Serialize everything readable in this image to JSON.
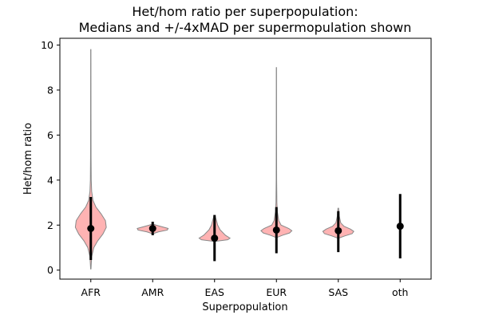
{
  "chart_data": {
    "type": "violin",
    "title_line1": "Het/hom ratio per superpopulation:",
    "title_line2": "Medians and +/-4xMAD per supermopulation shown",
    "xlabel": "Superpopulation",
    "ylabel": "Het/hom ratio",
    "categories": [
      "AFR",
      "AMR",
      "EAS",
      "EUR",
      "SAS",
      "oth"
    ],
    "yticks": [
      0,
      2,
      4,
      6,
      8,
      10
    ],
    "ylim": [
      -0.4,
      10.3
    ],
    "grid": false,
    "violin_color": "#ff9999",
    "violin_edge_color": "#888888",
    "marker_color": "#000000",
    "medians": [
      1.85,
      1.85,
      1.42,
      1.78,
      1.75,
      1.95
    ],
    "mad_range_low": [
      0.45,
      1.55,
      0.4,
      0.75,
      0.8,
      0.52
    ],
    "mad_range_high": [
      3.25,
      2.15,
      2.45,
      2.8,
      2.62,
      3.38
    ],
    "violins": [
      {
        "name": "AFR",
        "min": 0.05,
        "max": 9.8,
        "profile": [
          [
            0.05,
            0.002
          ],
          [
            0.6,
            0.01
          ],
          [
            1.0,
            0.035
          ],
          [
            1.3,
            0.08
          ],
          [
            1.6,
            0.14
          ],
          [
            1.9,
            0.18
          ],
          [
            2.2,
            0.17
          ],
          [
            2.5,
            0.12
          ],
          [
            2.8,
            0.06
          ],
          [
            3.1,
            0.025
          ],
          [
            3.5,
            0.01
          ],
          [
            4.0,
            0.005
          ],
          [
            5.0,
            0.003
          ],
          [
            7.0,
            0.002
          ],
          [
            9.8,
            0.0015
          ]
        ]
      },
      {
        "name": "AMR",
        "min": 1.62,
        "max": 2.05,
        "profile": [
          [
            1.62,
            0.005
          ],
          [
            1.7,
            0.07
          ],
          [
            1.78,
            0.18
          ],
          [
            1.85,
            0.19
          ],
          [
            1.92,
            0.12
          ],
          [
            2.0,
            0.04
          ],
          [
            2.05,
            0.005
          ]
        ]
      },
      {
        "name": "EAS",
        "min": 1.28,
        "max": 2.4,
        "profile": [
          [
            1.28,
            0.01
          ],
          [
            1.35,
            0.17
          ],
          [
            1.42,
            0.2
          ],
          [
            1.55,
            0.14
          ],
          [
            1.8,
            0.07
          ],
          [
            2.0,
            0.04
          ],
          [
            2.2,
            0.025
          ],
          [
            2.4,
            0.008
          ]
        ]
      },
      {
        "name": "EUR",
        "min": 1.45,
        "max": 9.0,
        "profile": [
          [
            1.45,
            0.005
          ],
          [
            1.55,
            0.08
          ],
          [
            1.65,
            0.17
          ],
          [
            1.75,
            0.2
          ],
          [
            1.85,
            0.16
          ],
          [
            2.0,
            0.06
          ],
          [
            2.2,
            0.03
          ],
          [
            2.6,
            0.012
          ],
          [
            3.0,
            0.006
          ],
          [
            4.0,
            0.003
          ],
          [
            6.0,
            0.002
          ],
          [
            9.0,
            0.0015
          ]
        ]
      },
      {
        "name": "SAS",
        "min": 1.42,
        "max": 2.75,
        "profile": [
          [
            1.42,
            0.005
          ],
          [
            1.52,
            0.08
          ],
          [
            1.62,
            0.17
          ],
          [
            1.72,
            0.19
          ],
          [
            1.82,
            0.15
          ],
          [
            1.95,
            0.07
          ],
          [
            2.1,
            0.03
          ],
          [
            2.4,
            0.012
          ],
          [
            2.75,
            0.004
          ]
        ]
      }
    ]
  }
}
